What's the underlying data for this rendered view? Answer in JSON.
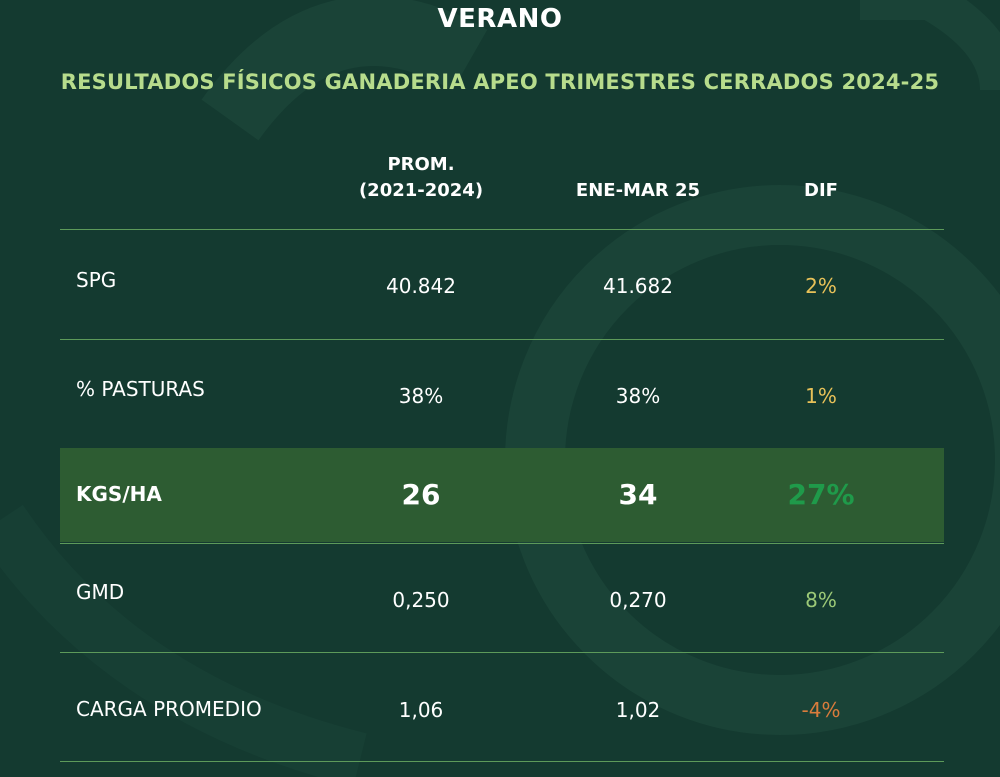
{
  "title": "VERANO",
  "subtitle": "RESULTADOS FÍSICOS GANADERIA APEO TRIMESTRES CERRADOS 2024-25",
  "columns": [
    "PROM.\n(2021-2024)",
    "ENE-MAR 25",
    "DIF"
  ],
  "rows": [
    {
      "label": "SPG",
      "prom": "40.842",
      "current": "41.682",
      "dif": "2%",
      "dif_color": "#e8c158"
    },
    {
      "label": "% PASTURAS",
      "prom": "38%",
      "current": "38%",
      "dif": "1%",
      "dif_color": "#e8c158"
    },
    {
      "label": "KGS/HA",
      "prom": "26",
      "current": "34",
      "dif": "27%",
      "dif_color": "#1f9a4a"
    },
    {
      "label": "GMD",
      "prom": "0,250",
      "current": "0,270",
      "dif": "8%",
      "dif_color": "#9cc977"
    },
    {
      "label": "CARGA PROMEDIO",
      "prom": "1,06",
      "current": "1,02",
      "dif": "-4%",
      "dif_color": "#d97c3c"
    }
  ],
  "colors": {
    "background": "#143a30",
    "subtitle": "#b7dc8c",
    "highlight_row": "#2d5c32",
    "divider": "#5d9a5a"
  }
}
